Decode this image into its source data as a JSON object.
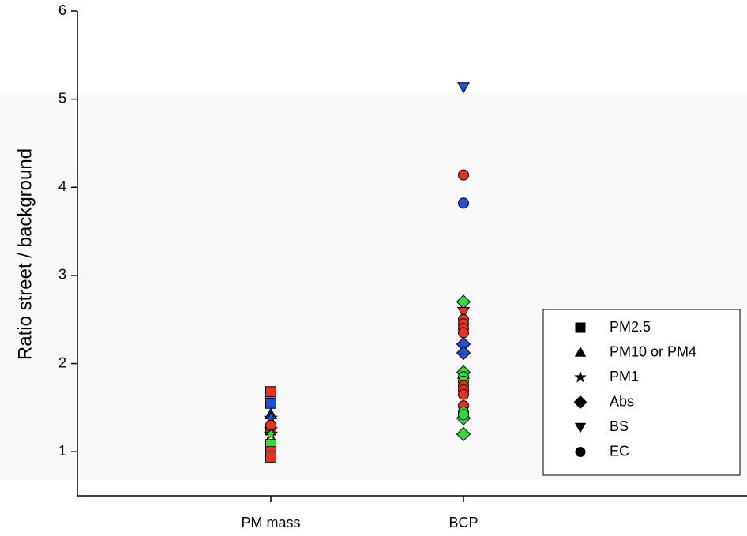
{
  "chart_data": {
    "type": "scatter",
    "y_label": "Ratio street / background",
    "categories": [
      "PM mass",
      "BCP"
    ],
    "ylim": [
      0.5,
      6
    ],
    "yticks": [
      1,
      2,
      3,
      4,
      5,
      6
    ],
    "legend": "lower right",
    "series": [
      {
        "name": "PM2.5",
        "marker": "square",
        "points": [
          {
            "x": "PM mass",
            "value": 1.68,
            "color": "#e8301c"
          },
          {
            "x": "PM mass",
            "value": 1.55,
            "color": "#2050d8"
          },
          {
            "x": "PM mass",
            "value": 1.25,
            "color": "#e8301c"
          },
          {
            "x": "PM mass",
            "value": 1.08,
            "color": "#33dd33"
          },
          {
            "x": "PM mass",
            "value": 1.0,
            "color": "#e8301c"
          },
          {
            "x": "PM mass",
            "value": 0.94,
            "color": "#e8301c"
          }
        ]
      },
      {
        "name": "PM10 or PM4",
        "marker": "triangle",
        "points": [
          {
            "x": "PM mass",
            "value": 1.42,
            "color": "#1a2a80"
          },
          {
            "x": "BCP",
            "value": 1.88,
            "color": "#33dd33"
          }
        ]
      },
      {
        "name": "PM1",
        "marker": "star",
        "points": [
          {
            "x": "PM mass",
            "value": 1.38,
            "color": "#2050d8"
          },
          {
            "x": "PM mass",
            "value": 1.25,
            "color": "#e8301c"
          },
          {
            "x": "PM mass",
            "value": 1.2,
            "color": "#33dd33"
          }
        ]
      },
      {
        "name": "Abs",
        "marker": "diamond",
        "points": [
          {
            "x": "BCP",
            "value": 2.7,
            "color": "#33dd33"
          },
          {
            "x": "BCP",
            "value": 2.22,
            "color": "#2050d8"
          },
          {
            "x": "BCP",
            "value": 2.12,
            "color": "#2050d8"
          },
          {
            "x": "BCP",
            "value": 1.9,
            "color": "#33dd33"
          },
          {
            "x": "BCP",
            "value": 1.38,
            "color": "#33dd33"
          },
          {
            "x": "BCP",
            "value": 1.2,
            "color": "#33dd33"
          }
        ]
      },
      {
        "name": "BS",
        "marker": "triangle-down",
        "points": [
          {
            "x": "BCP",
            "value": 5.14,
            "color": "#2050d8"
          },
          {
            "x": "BCP",
            "value": 2.59,
            "color": "#e8301c"
          }
        ]
      },
      {
        "name": "EC",
        "marker": "circle",
        "points": [
          {
            "x": "PM mass",
            "value": 1.3,
            "color": "#e8301c"
          },
          {
            "x": "BCP",
            "value": 4.14,
            "color": "#e8301c"
          },
          {
            "x": "BCP",
            "value": 3.82,
            "color": "#2050d8"
          },
          {
            "x": "BCP",
            "value": 2.5,
            "color": "#e8301c"
          },
          {
            "x": "BCP",
            "value": 2.45,
            "color": "#e8301c"
          },
          {
            "x": "BCP",
            "value": 2.4,
            "color": "#e8301c"
          },
          {
            "x": "BCP",
            "value": 2.35,
            "color": "#e8301c"
          },
          {
            "x": "BCP",
            "value": 1.85,
            "color": "#33dd33"
          },
          {
            "x": "BCP",
            "value": 1.8,
            "color": "#33dd33"
          },
          {
            "x": "BCP",
            "value": 1.75,
            "color": "#e8301c"
          },
          {
            "x": "BCP",
            "value": 1.7,
            "color": "#e8301c"
          },
          {
            "x": "BCP",
            "value": 1.65,
            "color": "#e8301c"
          },
          {
            "x": "BCP",
            "value": 1.52,
            "color": "#e8301c"
          },
          {
            "x": "BCP",
            "value": 1.45,
            "color": "#33dd33"
          },
          {
            "x": "BCP",
            "value": 1.42,
            "color": "#33dd33"
          }
        ]
      }
    ]
  }
}
